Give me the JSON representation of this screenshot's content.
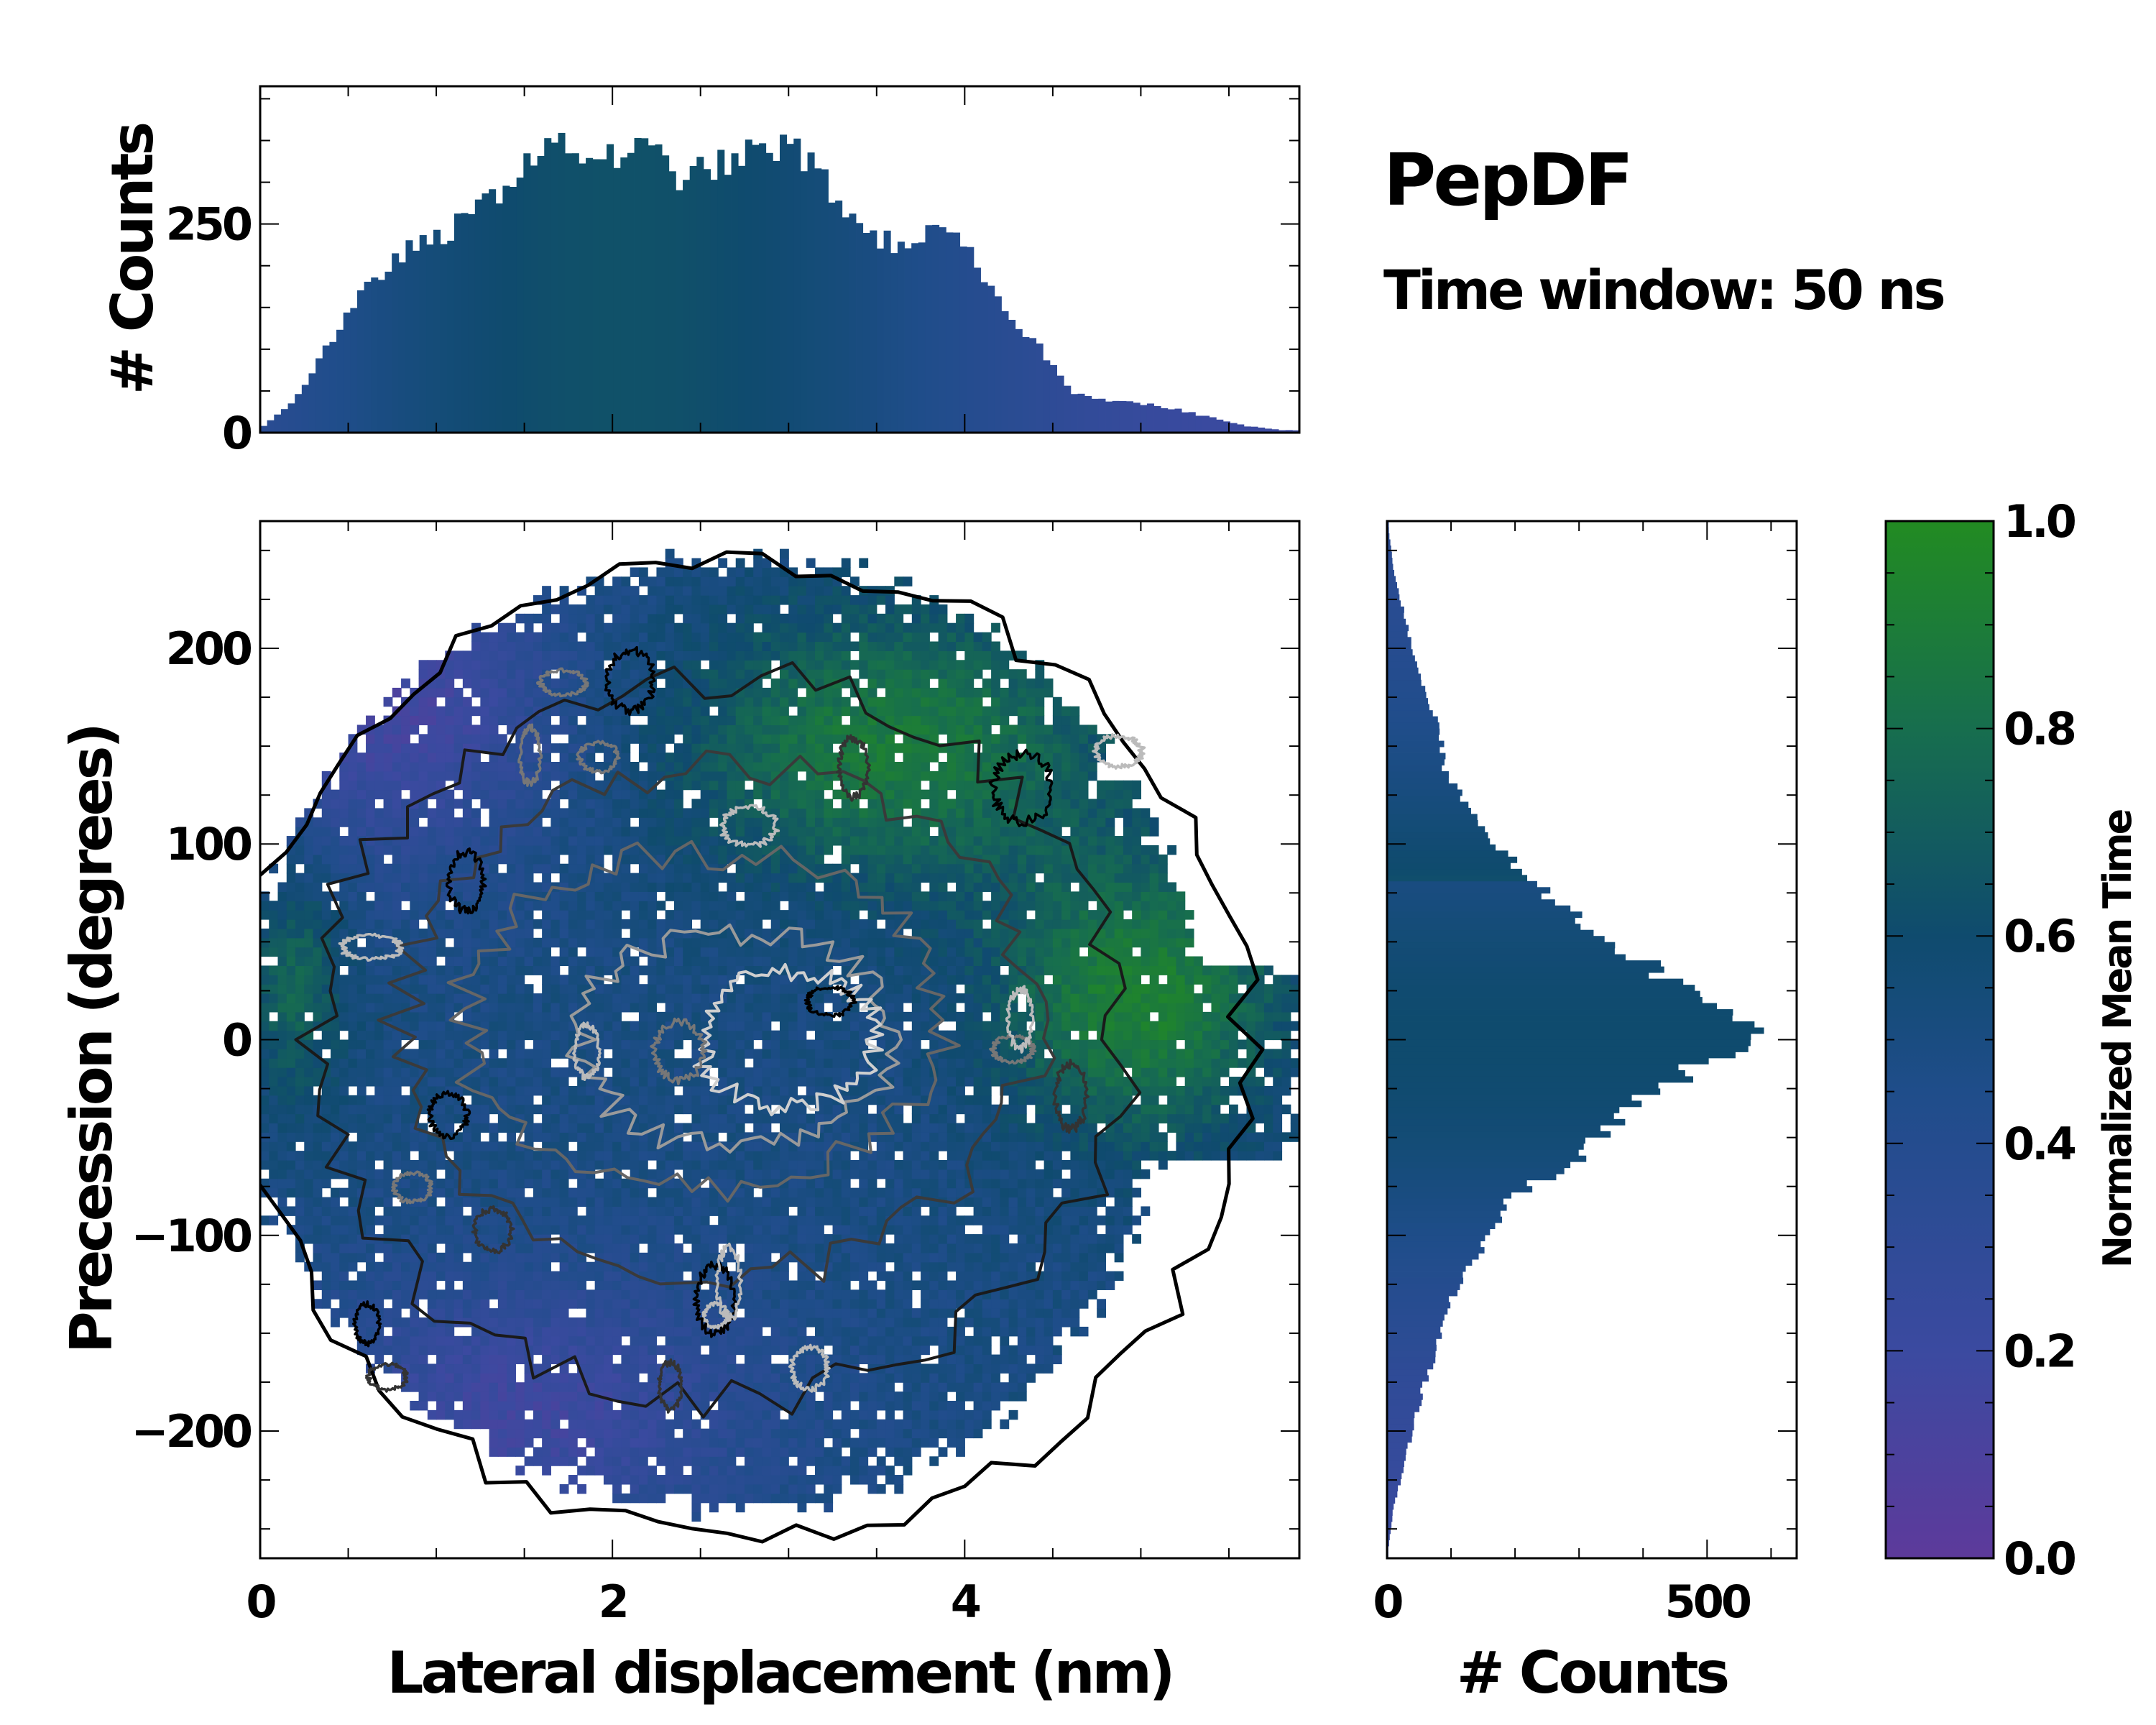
{
  "chart_data": [
    {
      "type": "heatmap",
      "name": "joint-histogram",
      "title": "PepDF",
      "subtitle": "Time window: 50 ns",
      "xlabel": "Lateral displacement (nm)",
      "ylabel": "Precession (degrees)",
      "xlim": [
        0,
        5.9
      ],
      "ylim": [
        -265,
        265
      ],
      "xticks": [
        0,
        2,
        4
      ],
      "xtick_labels": [
        "0",
        "2",
        "4"
      ],
      "yticks": [
        -200,
        -100,
        0,
        100,
        200
      ],
      "ytick_labels": [
        "−200",
        "−100",
        "0",
        "100",
        "200"
      ],
      "color_meaning": "Normalized Mean Time",
      "contours": true,
      "regions_mean_time": [
        {
          "region": "upper-left (x 0-2, y 100-250)",
          "value": 0.15
        },
        {
          "region": "upper-right (x 2-4.5, y 100-220)",
          "value": 0.9
        },
        {
          "region": "right (x 4.5-5.8, y -50-100)",
          "value": 0.92
        },
        {
          "region": "center (x 1-4, y -50-50)",
          "value": 0.55
        },
        {
          "region": "lower (x 0-4, y -250--100)",
          "value": 0.2
        },
        {
          "region": "lower-right (x 4-5.5, y -150--50)",
          "value": 0.45
        }
      ]
    },
    {
      "type": "bar",
      "name": "x-marginal-histogram",
      "ylabel": "# Counts",
      "xlim": [
        0,
        5.9
      ],
      "ylim": [
        0,
        415
      ],
      "yticks": [
        0,
        250
      ],
      "ytick_labels": [
        "0",
        "250"
      ],
      "x": [
        0.0,
        0.2,
        0.4,
        0.6,
        0.8,
        1.0,
        1.2,
        1.4,
        1.6,
        1.8,
        2.0,
        2.2,
        2.4,
        2.6,
        2.8,
        3.0,
        3.2,
        3.4,
        3.6,
        3.8,
        4.0,
        4.2,
        4.4,
        4.6,
        4.8,
        5.0,
        5.2,
        5.4,
        5.6,
        5.8
      ],
      "values": [
        5,
        40,
        110,
        170,
        215,
        230,
        260,
        300,
        345,
        335,
        330,
        340,
        305,
        320,
        335,
        345,
        305,
        245,
        225,
        240,
        225,
        150,
        110,
        50,
        40,
        35,
        28,
        18,
        8,
        3
      ]
    },
    {
      "type": "bar",
      "name": "y-marginal-histogram",
      "orientation": "horizontal",
      "xlabel": "# Counts",
      "xlim": [
        0,
        640
      ],
      "xticks": [
        0,
        500
      ],
      "xtick_labels": [
        "0",
        "500"
      ],
      "y": [
        -260,
        -240,
        -220,
        -200,
        -180,
        -160,
        -140,
        -120,
        -100,
        -80,
        -60,
        -40,
        -20,
        0,
        20,
        40,
        60,
        80,
        100,
        120,
        140,
        160,
        180,
        200,
        220,
        240,
        260
      ],
      "values": [
        2,
        10,
        25,
        40,
        55,
        75,
        90,
        120,
        160,
        200,
        300,
        360,
        450,
        570,
        500,
        400,
        300,
        230,
        170,
        120,
        90,
        80,
        55,
        40,
        25,
        10,
        3
      ]
    },
    {
      "type": "colorbar",
      "name": "mean-time-colorbar",
      "label": "Normalized Mean Time",
      "range": [
        0.0,
        1.0
      ],
      "ticks": [
        0.0,
        0.2,
        0.4,
        0.6,
        0.8,
        1.0
      ],
      "tick_labels": [
        "0.0",
        "0.2",
        "0.4",
        "0.6",
        "0.8",
        "1.0"
      ],
      "colors": [
        "#5d3a9b",
        "#3b4aa0",
        "#1f4d8a",
        "#0f4b6e",
        "#176e4e",
        "#228b22"
      ]
    }
  ]
}
